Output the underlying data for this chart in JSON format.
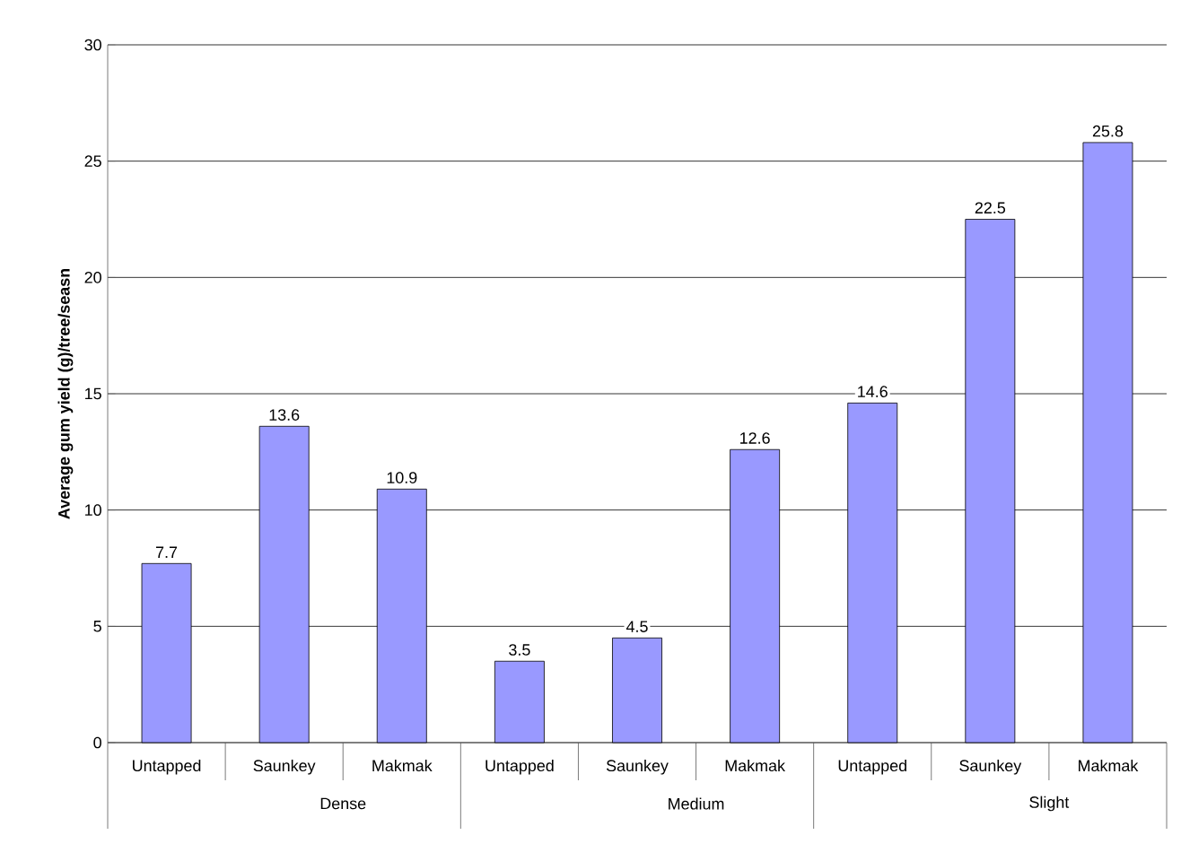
{
  "chart_data": {
    "type": "bar",
    "ylabel": "Average gum yield (g)/tree/seasn",
    "categories": [
      "Untapped",
      "Saunkey",
      "Makmak",
      "Untapped",
      "Saunkey",
      "Makmak",
      "Untapped",
      "Saunkey",
      "Makmak"
    ],
    "values": [
      7.7,
      13.6,
      10.9,
      3.5,
      4.5,
      12.6,
      14.6,
      22.5,
      25.8
    ],
    "color": "#9999ff",
    "ylim": [
      0,
      30
    ],
    "yticks": [
      0,
      5,
      10,
      15,
      20,
      25,
      30
    ],
    "grid": "y",
    "data_labels": true,
    "annotations": [
      "Dense",
      "Medium",
      "Slight"
    ]
  }
}
